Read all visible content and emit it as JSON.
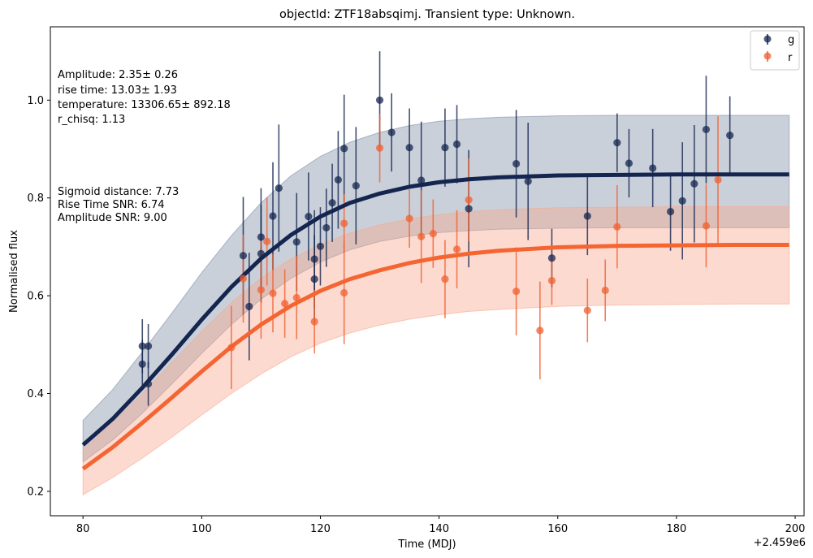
{
  "chart_data": {
    "type": "scatter",
    "title": "objectId: ZTF18absqimj. Transient type: Unknown.",
    "xlabel": "Time (MDJ)",
    "ylabel": "Normalised flux",
    "x_offset_label": "+2.459e6",
    "xlim": [
      74.5,
      201.5
    ],
    "ylim": [
      0.15,
      1.15
    ],
    "xticks": [
      80,
      100,
      120,
      140,
      160,
      180,
      200
    ],
    "yticks": [
      0.2,
      0.4,
      0.6,
      0.8,
      1.0
    ],
    "xtick_labels": [
      "80",
      "100",
      "120",
      "140",
      "160",
      "180",
      "200"
    ],
    "ytick_labels": [
      "0.2",
      "0.4",
      "0.6",
      "0.8",
      "1.0"
    ],
    "legend_position": "top-right",
    "legend": [
      {
        "label": "g",
        "color": "#14254f"
      },
      {
        "label": "r",
        "color": "#f06030"
      }
    ],
    "annotations_top": [
      "Amplitude: 2.35± 0.26",
      "rise time: 13.03± 1.93",
      "temperature: 13306.65± 892.18",
      "r_chisq: 1.13"
    ],
    "annotations_mid": [
      "Sigmoid distance: 7.73",
      "Rise Time SNR: 6.74",
      "Amplitude SNR: 9.00"
    ],
    "series": [
      {
        "name": "g",
        "color": "#14254f",
        "points": [
          {
            "x": 90.0,
            "y": 0.497,
            "err": 0.055
          },
          {
            "x": 90.0,
            "y": 0.46,
            "err": 0.05
          },
          {
            "x": 91.0,
            "y": 0.497,
            "err": 0.045
          },
          {
            "x": 91.0,
            "y": 0.42,
            "err": 0.045
          },
          {
            "x": 107.0,
            "y": 0.682,
            "err": 0.12
          },
          {
            "x": 108.0,
            "y": 0.578,
            "err": 0.11
          },
          {
            "x": 110.0,
            "y": 0.72,
            "err": 0.1
          },
          {
            "x": 110.0,
            "y": 0.686,
            "err": 0.1
          },
          {
            "x": 112.0,
            "y": 0.763,
            "err": 0.11
          },
          {
            "x": 113.0,
            "y": 0.82,
            "err": 0.13
          },
          {
            "x": 116.0,
            "y": 0.71,
            "err": 0.1
          },
          {
            "x": 118.0,
            "y": 0.762,
            "err": 0.09
          },
          {
            "x": 119.0,
            "y": 0.675,
            "err": 0.1
          },
          {
            "x": 119.0,
            "y": 0.634,
            "err": 0.09
          },
          {
            "x": 120.0,
            "y": 0.701,
            "err": 0.08
          },
          {
            "x": 121.0,
            "y": 0.739,
            "err": 0.08
          },
          {
            "x": 122.0,
            "y": 0.79,
            "err": 0.08
          },
          {
            "x": 123.0,
            "y": 0.837,
            "err": 0.1
          },
          {
            "x": 124.0,
            "y": 0.901,
            "err": 0.11
          },
          {
            "x": 126.0,
            "y": 0.825,
            "err": 0.12
          },
          {
            "x": 130.0,
            "y": 1.0,
            "err": 0.1
          },
          {
            "x": 132.0,
            "y": 0.934,
            "err": 0.08
          },
          {
            "x": 135.0,
            "y": 0.903,
            "err": 0.08
          },
          {
            "x": 137.0,
            "y": 0.836,
            "err": 0.12
          },
          {
            "x": 141.0,
            "y": 0.903,
            "err": 0.08
          },
          {
            "x": 143.0,
            "y": 0.91,
            "err": 0.08
          },
          {
            "x": 145.0,
            "y": 0.778,
            "err": 0.12
          },
          {
            "x": 153.0,
            "y": 0.87,
            "err": 0.11
          },
          {
            "x": 155.0,
            "y": 0.834,
            "err": 0.12
          },
          {
            "x": 159.0,
            "y": 0.677,
            "err": 0.06
          },
          {
            "x": 165.0,
            "y": 0.763,
            "err": 0.08
          },
          {
            "x": 170.0,
            "y": 0.913,
            "err": 0.06
          },
          {
            "x": 172.0,
            "y": 0.871,
            "err": 0.07
          },
          {
            "x": 176.0,
            "y": 0.861,
            "err": 0.08
          },
          {
            "x": 179.0,
            "y": 0.772,
            "err": 0.08
          },
          {
            "x": 181.0,
            "y": 0.794,
            "err": 0.12
          },
          {
            "x": 183.0,
            "y": 0.829,
            "err": 0.12
          },
          {
            "x": 185.0,
            "y": 0.94,
            "err": 0.11
          },
          {
            "x": 189.0,
            "y": 0.928,
            "err": 0.08
          }
        ]
      },
      {
        "name": "r",
        "color": "#f06030",
        "points": [
          {
            "x": 105.0,
            "y": 0.494,
            "err": 0.085
          },
          {
            "x": 107.0,
            "y": 0.635,
            "err": 0.09
          },
          {
            "x": 110.0,
            "y": 0.612,
            "err": 0.1
          },
          {
            "x": 111.0,
            "y": 0.711,
            "err": 0.09
          },
          {
            "x": 112.0,
            "y": 0.605,
            "err": 0.08
          },
          {
            "x": 114.0,
            "y": 0.584,
            "err": 0.07
          },
          {
            "x": 116.0,
            "y": 0.596,
            "err": 0.085
          },
          {
            "x": 119.0,
            "y": 0.547,
            "err": 0.065
          },
          {
            "x": 124.0,
            "y": 0.748,
            "err": 0.06
          },
          {
            "x": 124.0,
            "y": 0.606,
            "err": 0.105
          },
          {
            "x": 130.0,
            "y": 0.902,
            "err": 0.07
          },
          {
            "x": 135.0,
            "y": 0.758,
            "err": 0.06
          },
          {
            "x": 137.0,
            "y": 0.721,
            "err": 0.095
          },
          {
            "x": 139.0,
            "y": 0.727,
            "err": 0.07
          },
          {
            "x": 141.0,
            "y": 0.634,
            "err": 0.08
          },
          {
            "x": 143.0,
            "y": 0.695,
            "err": 0.08
          },
          {
            "x": 145.0,
            "y": 0.796,
            "err": 0.085
          },
          {
            "x": 153.0,
            "y": 0.609,
            "err": 0.09
          },
          {
            "x": 157.0,
            "y": 0.529,
            "err": 0.1
          },
          {
            "x": 159.0,
            "y": 0.631,
            "err": 0.05
          },
          {
            "x": 165.0,
            "y": 0.57,
            "err": 0.065
          },
          {
            "x": 168.0,
            "y": 0.611,
            "err": 0.063
          },
          {
            "x": 170.0,
            "y": 0.741,
            "err": 0.085
          },
          {
            "x": 185.0,
            "y": 0.743,
            "err": 0.085
          },
          {
            "x": 187.0,
            "y": 0.837,
            "err": 0.13
          }
        ]
      }
    ],
    "fits": [
      {
        "name": "g",
        "color": "#14254f",
        "band_color": "#8090a8",
        "x": [
          80,
          85,
          90,
          95,
          100,
          105,
          110,
          115,
          120,
          125,
          130,
          135,
          140,
          145,
          150,
          160,
          170,
          180,
          190,
          199
        ],
        "y": [
          0.295,
          0.348,
          0.412,
          0.48,
          0.551,
          0.618,
          0.676,
          0.724,
          0.762,
          0.79,
          0.809,
          0.823,
          0.832,
          0.838,
          0.842,
          0.846,
          0.847,
          0.848,
          0.848,
          0.848
        ],
        "upper": [
          0.345,
          0.408,
          0.485,
          0.565,
          0.647,
          0.723,
          0.79,
          0.845,
          0.885,
          0.914,
          0.934,
          0.948,
          0.957,
          0.962,
          0.965,
          0.968,
          0.969,
          0.969,
          0.969,
          0.969
        ],
        "lower": [
          0.26,
          0.305,
          0.36,
          0.42,
          0.482,
          0.541,
          0.593,
          0.635,
          0.669,
          0.694,
          0.711,
          0.722,
          0.729,
          0.733,
          0.736,
          0.738,
          0.739,
          0.739,
          0.739,
          0.739
        ]
      },
      {
        "name": "r",
        "color": "#f46532",
        "band_color": "#f8a890",
        "x": [
          80,
          85,
          90,
          95,
          100,
          105,
          110,
          115,
          120,
          125,
          130,
          135,
          140,
          145,
          150,
          160,
          170,
          180,
          190,
          199
        ],
        "y": [
          0.246,
          0.29,
          0.34,
          0.392,
          0.445,
          0.496,
          0.541,
          0.579,
          0.61,
          0.634,
          0.652,
          0.667,
          0.678,
          0.686,
          0.692,
          0.699,
          0.702,
          0.703,
          0.704,
          0.704
        ],
        "upper": [
          0.285,
          0.34,
          0.4,
          0.464,
          0.527,
          0.586,
          0.636,
          0.675,
          0.705,
          0.728,
          0.745,
          0.757,
          0.766,
          0.772,
          0.776,
          0.78,
          0.781,
          0.782,
          0.782,
          0.782
        ],
        "lower": [
          0.193,
          0.228,
          0.268,
          0.311,
          0.356,
          0.4,
          0.44,
          0.475,
          0.503,
          0.524,
          0.54,
          0.552,
          0.561,
          0.568,
          0.572,
          0.578,
          0.581,
          0.582,
          0.583,
          0.583
        ]
      }
    ]
  }
}
